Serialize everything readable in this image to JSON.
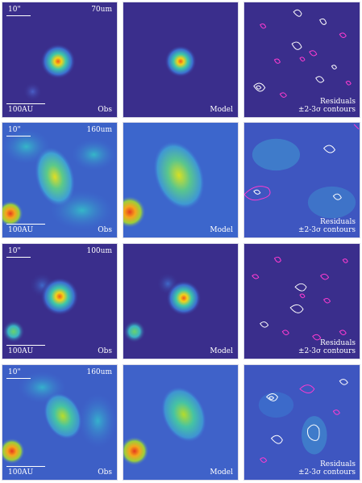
{
  "rows": [
    {
      "band": "70um",
      "scale_top": "10\"",
      "scale_bottom": "100AU",
      "obs_label": "Obs",
      "model_label": "Model",
      "res_line1": "Residuals",
      "res_line2": "±2-3σ contours"
    },
    {
      "band": "160um",
      "scale_top": "10\"",
      "scale_bottom": "100AU",
      "obs_label": "Obs",
      "model_label": "Model",
      "res_line1": "Residuals",
      "res_line2": "±2-3σ contours"
    },
    {
      "band": "100um",
      "scale_top": "10\"",
      "scale_bottom": "100AU",
      "obs_label": "Obs",
      "model_label": "Model",
      "res_line1": "Residuals",
      "res_line2": "±2-3σ contours"
    },
    {
      "band": "160um",
      "scale_top": "10\"",
      "scale_bottom": "100AU",
      "obs_label": "Obs",
      "model_label": "Model",
      "res_line1": "Residuals",
      "res_line2": "±2-3σ contours"
    }
  ],
  "colors": {
    "background_dark": "#3b2f8e",
    "background_mid": "#3f6fd1",
    "peak": "#e8471e",
    "yellow": "#d9e21f",
    "contour_white": "#ffffff",
    "contour_pink": "#ff3bd1"
  }
}
